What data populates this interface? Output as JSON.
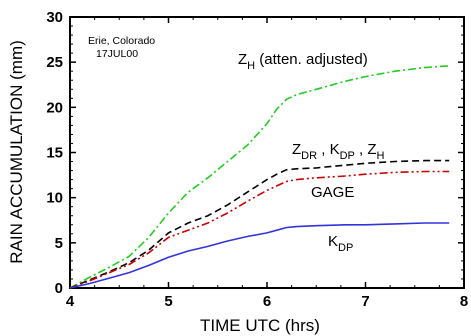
{
  "chart_data": {
    "type": "line",
    "xlabel": "TIME UTC (hrs)",
    "ylabel": "RAIN ACCUMULATION (mm)",
    "xlim": [
      4,
      8
    ],
    "ylim": [
      0,
      30
    ],
    "x_ticks": [
      4,
      5,
      6,
      7,
      8
    ],
    "y_ticks": [
      0,
      5,
      10,
      15,
      20,
      25,
      30
    ],
    "grid": false,
    "inset_text": [
      "Erie, Colorado",
      "17JUL00"
    ],
    "series": [
      {
        "name": "ZH (atten. adjusted)",
        "label_main": "Z",
        "label_sub": "H",
        "label_rest": " (atten. adjusted)",
        "color": "#22cc22",
        "style": "dashdot",
        "x": [
          4.0,
          4.2,
          4.4,
          4.6,
          4.8,
          5.0,
          5.2,
          5.4,
          5.6,
          5.8,
          6.0,
          6.1,
          6.2,
          6.3,
          6.5,
          6.8,
          7.0,
          7.3,
          7.6,
          7.85
        ],
        "y": [
          0.0,
          1.2,
          2.3,
          3.5,
          5.6,
          8.3,
          10.6,
          12.2,
          14.0,
          15.8,
          18.2,
          19.8,
          20.9,
          21.4,
          22.0,
          22.9,
          23.4,
          24.0,
          24.4,
          24.6
        ]
      },
      {
        "name": "ZDR , KDP , ZH",
        "label_parts": [
          {
            "main": "Z",
            "sub": "DR"
          },
          {
            "main": " , K",
            "sub": "DP"
          },
          {
            "main": " , Z",
            "sub": "H"
          }
        ],
        "color": "#000000",
        "style": "dashed",
        "x": [
          4.0,
          4.2,
          4.4,
          4.6,
          4.8,
          5.0,
          5.2,
          5.4,
          5.6,
          5.8,
          6.0,
          6.1,
          6.2,
          6.3,
          6.5,
          6.8,
          7.0,
          7.3,
          7.6,
          7.85
        ],
        "y": [
          0.0,
          0.9,
          1.8,
          2.8,
          4.2,
          6.1,
          7.2,
          8.0,
          9.2,
          10.6,
          12.0,
          12.6,
          13.1,
          13.2,
          13.3,
          13.6,
          13.8,
          14.0,
          14.1,
          14.1
        ]
      },
      {
        "name": "GAGE",
        "color": "#cc0000",
        "style": "dashdotdot",
        "x": [
          4.0,
          4.2,
          4.4,
          4.6,
          4.8,
          5.0,
          5.2,
          5.4,
          5.6,
          5.8,
          6.0,
          6.1,
          6.2,
          6.3,
          6.5,
          6.8,
          7.0,
          7.3,
          7.6,
          7.85
        ],
        "y": [
          0.0,
          0.8,
          1.7,
          2.6,
          3.9,
          5.6,
          6.4,
          7.2,
          8.3,
          9.6,
          10.8,
          11.3,
          11.8,
          12.0,
          12.2,
          12.4,
          12.6,
          12.8,
          12.9,
          12.9
        ]
      },
      {
        "name": "KDP",
        "label_main": "K",
        "label_sub": "DP",
        "color": "#3333dd",
        "style": "solid",
        "x": [
          4.0,
          4.2,
          4.4,
          4.6,
          4.8,
          5.0,
          5.2,
          5.4,
          5.6,
          5.8,
          6.0,
          6.1,
          6.2,
          6.3,
          6.5,
          6.8,
          7.0,
          7.3,
          7.6,
          7.85
        ],
        "y": [
          0.0,
          0.5,
          1.1,
          1.7,
          2.5,
          3.4,
          4.1,
          4.6,
          5.2,
          5.7,
          6.1,
          6.4,
          6.7,
          6.8,
          6.9,
          7.0,
          7.0,
          7.1,
          7.2,
          7.2
        ]
      }
    ]
  }
}
